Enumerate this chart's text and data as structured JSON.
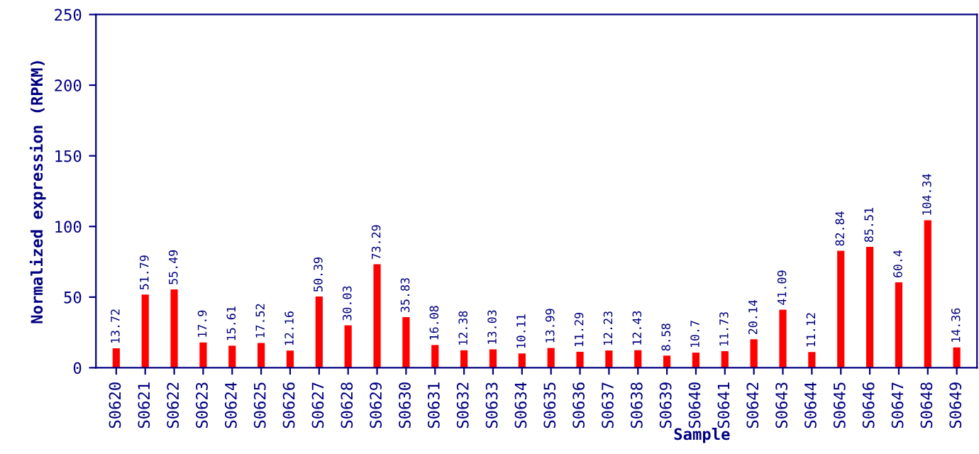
{
  "chart_data": {
    "type": "bar",
    "xlabel": "Sample",
    "ylabel": "Normalized expression (RPKM)",
    "categories": [
      "S0620",
      "S0621",
      "S0622",
      "S0623",
      "S0624",
      "S0625",
      "S0626",
      "S0627",
      "S0628",
      "S0629",
      "S0630",
      "S0631",
      "S0632",
      "S0633",
      "S0634",
      "S0635",
      "S0636",
      "S0637",
      "S0638",
      "S0639",
      "S0640",
      "S0641",
      "S0642",
      "S0643",
      "S0644",
      "S0645",
      "S0646",
      "S0647",
      "S0648",
      "S0649"
    ],
    "values": [
      13.72,
      51.79,
      55.49,
      17.9,
      15.61,
      17.52,
      12.16,
      50.39,
      30.03,
      73.29,
      35.83,
      16.08,
      12.38,
      13.03,
      10.11,
      13.99,
      11.29,
      12.23,
      12.43,
      8.58,
      10.7,
      11.73,
      20.14,
      41.09,
      11.12,
      82.84,
      85.51,
      60.4,
      104.34,
      14.36
    ],
    "color": "#ff0000",
    "ylim": [
      0,
      250
    ],
    "yticks": [
      0,
      50,
      100,
      150,
      200,
      250
    ],
    "data_labels": true,
    "grid": false
  }
}
